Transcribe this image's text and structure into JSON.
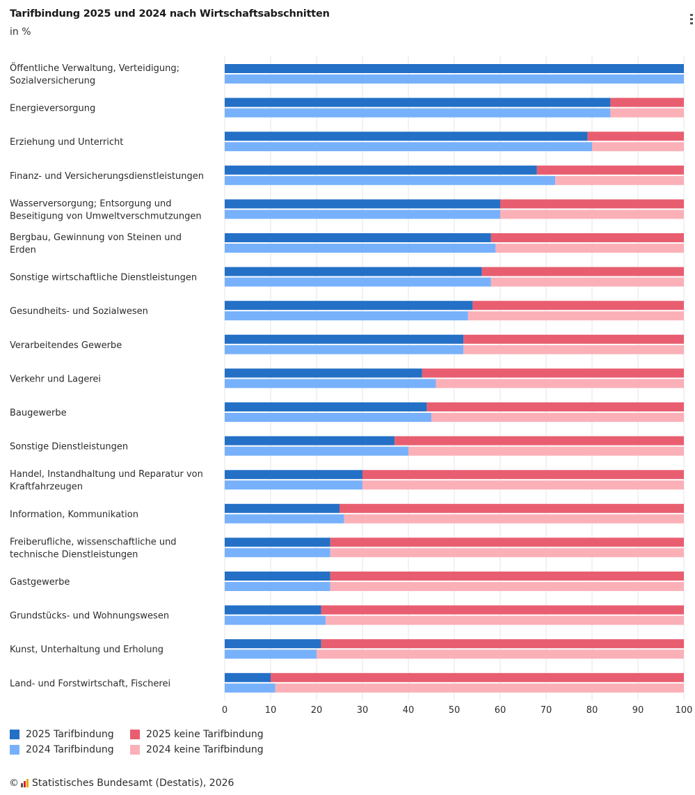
{
  "header": {
    "title": "Tarifbindung 2025 und 2024 nach Wirtschaftsabschnitten",
    "subtitle": "in %",
    "menu_icon": "more-vertical-icon"
  },
  "colors": {
    "tb2025": "#2470c6",
    "tb2024": "#78b1fb",
    "ktb2025": "#e85e70",
    "ktb2024": "#fbb0b8",
    "grid": "#e6e6e6"
  },
  "legend": {
    "items": [
      {
        "label": "2025 Tarifbindung",
        "color": "#2470c6"
      },
      {
        "label": "2025 keine Tarifbindung",
        "color": "#e85e70"
      },
      {
        "label": "2024 Tarifbindung",
        "color": "#78b1fb"
      },
      {
        "label": "2024 keine Tarifbindung",
        "color": "#fbb0b8"
      }
    ]
  },
  "source": {
    "copyright": "©",
    "text": "Statistisches Bundesamt (Destatis), 2026"
  },
  "chart_data": {
    "type": "bar",
    "orientation": "horizontal",
    "stacked": true,
    "title": "Tarifbindung 2025 und 2024 nach Wirtschaftsabschnitten",
    "subtitle": "in %",
    "xlabel": "",
    "ylabel": "",
    "xlim": [
      0,
      100
    ],
    "xticks": [
      0,
      10,
      20,
      30,
      40,
      50,
      60,
      70,
      80,
      90,
      100
    ],
    "grid": true,
    "legend_position": "bottom-left",
    "categories": [
      [
        "Öffentliche Verwaltung, Verteidigung;",
        "Sozialversicherung"
      ],
      [
        "Energieversorgung"
      ],
      [
        "Erziehung und Unterricht"
      ],
      [
        "Finanz- und Versicherungsdienstleistungen"
      ],
      [
        "Wasserversorgung; Entsorgung und",
        "Beseitigung von Umweltverschmutzungen"
      ],
      [
        "Bergbau, Gewinnung von Steinen und",
        "Erden"
      ],
      [
        "Sonstige wirtschaftliche Dienstleistungen"
      ],
      [
        "Gesundheits- und Sozialwesen"
      ],
      [
        "Verarbeitendes Gewerbe"
      ],
      [
        "Verkehr und Lagerei"
      ],
      [
        "Baugewerbe"
      ],
      [
        "Sonstige Dienstleistungen"
      ],
      [
        "Handel, Instandhaltung und Reparatur von",
        "Kraftfahrzeugen"
      ],
      [
        "Information, Kommunikation"
      ],
      [
        "Freiberufliche, wissenschaftliche und",
        "technische Dienstleistungen"
      ],
      [
        "Gastgewerbe"
      ],
      [
        "Grundstücks- und Wohnungswesen"
      ],
      [
        "Kunst, Unterhaltung und Erholung"
      ],
      [
        "Land- und Forstwirtschaft, Fischerei"
      ]
    ],
    "series": [
      {
        "name": "2025 Tarifbindung",
        "stack": "2025",
        "values": [
          100,
          84,
          79,
          68,
          60,
          58,
          56,
          54,
          52,
          43,
          44,
          37,
          30,
          25,
          23,
          23,
          21,
          21,
          10
        ]
      },
      {
        "name": "2025 keine Tarifbindung",
        "stack": "2025",
        "values": [
          0,
          16,
          21,
          32,
          40,
          42,
          44,
          46,
          48,
          57,
          56,
          63,
          70,
          75,
          77,
          77,
          79,
          79,
          90
        ]
      },
      {
        "name": "2024 Tarifbindung",
        "stack": "2024",
        "values": [
          100,
          84,
          80,
          72,
          60,
          59,
          58,
          53,
          52,
          46,
          45,
          40,
          30,
          26,
          23,
          23,
          22,
          20,
          11
        ]
      },
      {
        "name": "2024 keine Tarifbindung",
        "stack": "2024",
        "values": [
          0,
          16,
          20,
          28,
          40,
          41,
          42,
          47,
          48,
          54,
          55,
          60,
          70,
          74,
          77,
          77,
          78,
          80,
          89
        ]
      }
    ]
  }
}
